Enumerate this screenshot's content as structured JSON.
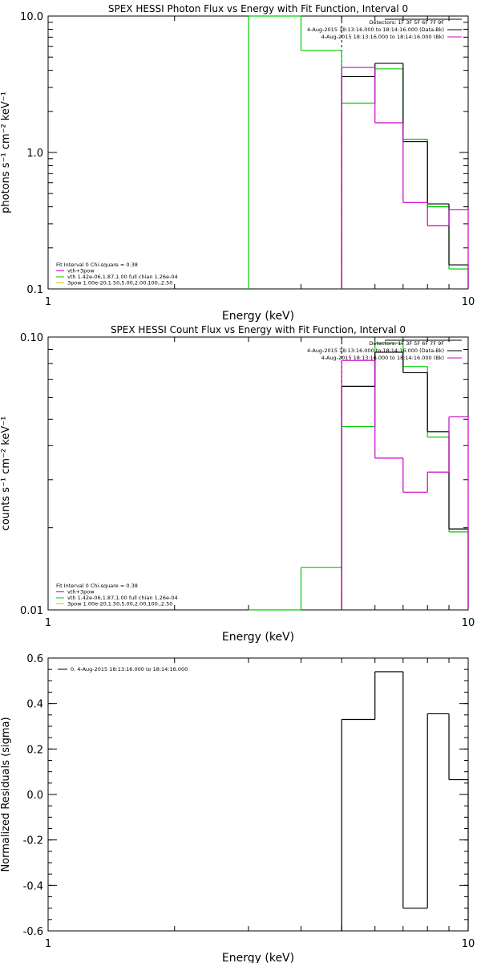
{
  "colors": {
    "axis": "#000000",
    "model": "#000000",
    "vth": "#00cc00",
    "vth_total": "#cc00cc",
    "spov": "#cccc00"
  },
  "chart_data": [
    {
      "type": "line",
      "title": "SPEX HESSI Photon Flux vs Energy with Fit Function, Interval 0",
      "xlabel": "Energy (keV)",
      "ylabel": "photons s⁻¹ cm⁻² keV⁻¹",
      "xscale": "log",
      "yscale": "log",
      "xlim": [
        1,
        10
      ],
      "ylim": [
        0.1,
        10
      ],
      "xticks": [
        {
          "v": 1,
          "l": "1"
        },
        {
          "v": 10,
          "l": "10"
        }
      ],
      "yticks": [
        {
          "v": 0.1,
          "l": "0.1"
        },
        {
          "v": 1,
          "l": "1.0"
        },
        {
          "v": 10,
          "l": "10.0"
        }
      ],
      "vline_x": 5.0,
      "legend_top": [
        "Detectors: 1F 3F 5F 6F 7F 9F",
        "4-Aug-2015 18:13:16.000 to 18:14:16.000 (Data-Bk)",
        "4-Aug-2015 18:13:16.000 to 18:14:16.000 (Bk)"
      ],
      "legend_bottom": [
        "Fit Interval 0   Chi-square = 0.38",
        "vth+3pow",
        "vth 1.42e-06,1.87,1.00  full chian 1.26e-04",
        "3pow 1.00e-20,1.50,5.00,2.00,100.,2.50"
      ],
      "edges": [
        3.0,
        4.0,
        5.0,
        6.0,
        7.0,
        8.0,
        9.0,
        10.0
      ],
      "series": [
        {
          "color": "vth",
          "values": [
            10.0,
            5.6,
            2.3,
            4.1,
            1.25,
            0.4,
            0.14
          ]
        },
        {
          "color": "model",
          "values": [
            null,
            null,
            3.6,
            4.5,
            1.2,
            0.42,
            0.15
          ]
        },
        {
          "color": "vth_total",
          "values": [
            null,
            null,
            4.2,
            1.65,
            0.43,
            0.29,
            0.38
          ]
        }
      ]
    },
    {
      "type": "line",
      "title": "SPEX HESSI Count Flux vs Energy with Fit Function, Interval 0",
      "xlabel": "Energy (keV)",
      "ylabel": "counts s⁻¹ cm⁻² keV⁻¹",
      "xscale": "log",
      "yscale": "log",
      "xlim": [
        1,
        10
      ],
      "ylim": [
        0.01,
        0.1
      ],
      "xticks": [
        {
          "v": 1,
          "l": "1"
        },
        {
          "v": 10,
          "l": "10"
        }
      ],
      "yticks": [
        {
          "v": 0.01,
          "l": "0.01"
        },
        {
          "v": 0.1,
          "l": "0.10"
        }
      ],
      "vline_x": 5.0,
      "legend_top": [
        "Detectors: 1F 3F 5F 6F 7F 9F",
        "4-Aug-2015 18:13:16.000 to 18:14:16.000 (Data-Bk)",
        "4-Aug-2015 18:13:16.000 to 18:14:16.000 (Bk)"
      ],
      "legend_bottom": [
        "Fit Interval 0   Chi-square = 0.38",
        "vth+3pow",
        "vth 1.42e-06,1.87,1.00  full chian 1.26e-04",
        "3pow 1.00e-20,1.50,5.00,2.00,100.,2.50"
      ],
      "edges": [
        3.0,
        4.0,
        5.0,
        6.0,
        7.0,
        8.0,
        9.0,
        10.0
      ],
      "series": [
        {
          "color": "vth",
          "values": [
            0.0095,
            0.0143,
            0.047,
            0.095,
            0.078,
            0.043,
            0.0193
          ]
        },
        {
          "color": "model",
          "values": [
            null,
            null,
            0.066,
            0.088,
            0.074,
            0.045,
            0.0198
          ]
        },
        {
          "color": "vth_total",
          "values": [
            null,
            null,
            0.082,
            0.036,
            0.027,
            0.032,
            0.051
          ]
        }
      ]
    },
    {
      "type": "line",
      "title": "",
      "xlabel": "Energy (keV)",
      "ylabel": "Normalized Residuals (sigma)",
      "xscale": "log",
      "yscale": "linear",
      "xlim": [
        1,
        10
      ],
      "ylim": [
        -0.6,
        0.6
      ],
      "xticks": [
        {
          "v": 1,
          "l": "1"
        },
        {
          "v": 10,
          "l": "10"
        }
      ],
      "yticks": [
        {
          "v": -0.6,
          "l": "-0.6"
        },
        {
          "v": -0.4,
          "l": "-0.4"
        },
        {
          "v": -0.2,
          "l": "-0.2"
        },
        {
          "v": 0,
          "l": "0.0"
        },
        {
          "v": 0.2,
          "l": "0.2"
        },
        {
          "v": 0.4,
          "l": "0.4"
        },
        {
          "v": 0.6,
          "l": "0.6"
        }
      ],
      "legend_top": [],
      "legend_bottom": [],
      "legend_line": "0. 4-Aug-2015 18:13:16.000 to 18:14:16.000",
      "edges": [
        5.0,
        6.0,
        7.0,
        8.0,
        9.0,
        10.0
      ],
      "series": [
        {
          "color": "model",
          "values": [
            0.33,
            0.54,
            -0.5,
            0.355,
            0.065
          ]
        }
      ]
    }
  ]
}
